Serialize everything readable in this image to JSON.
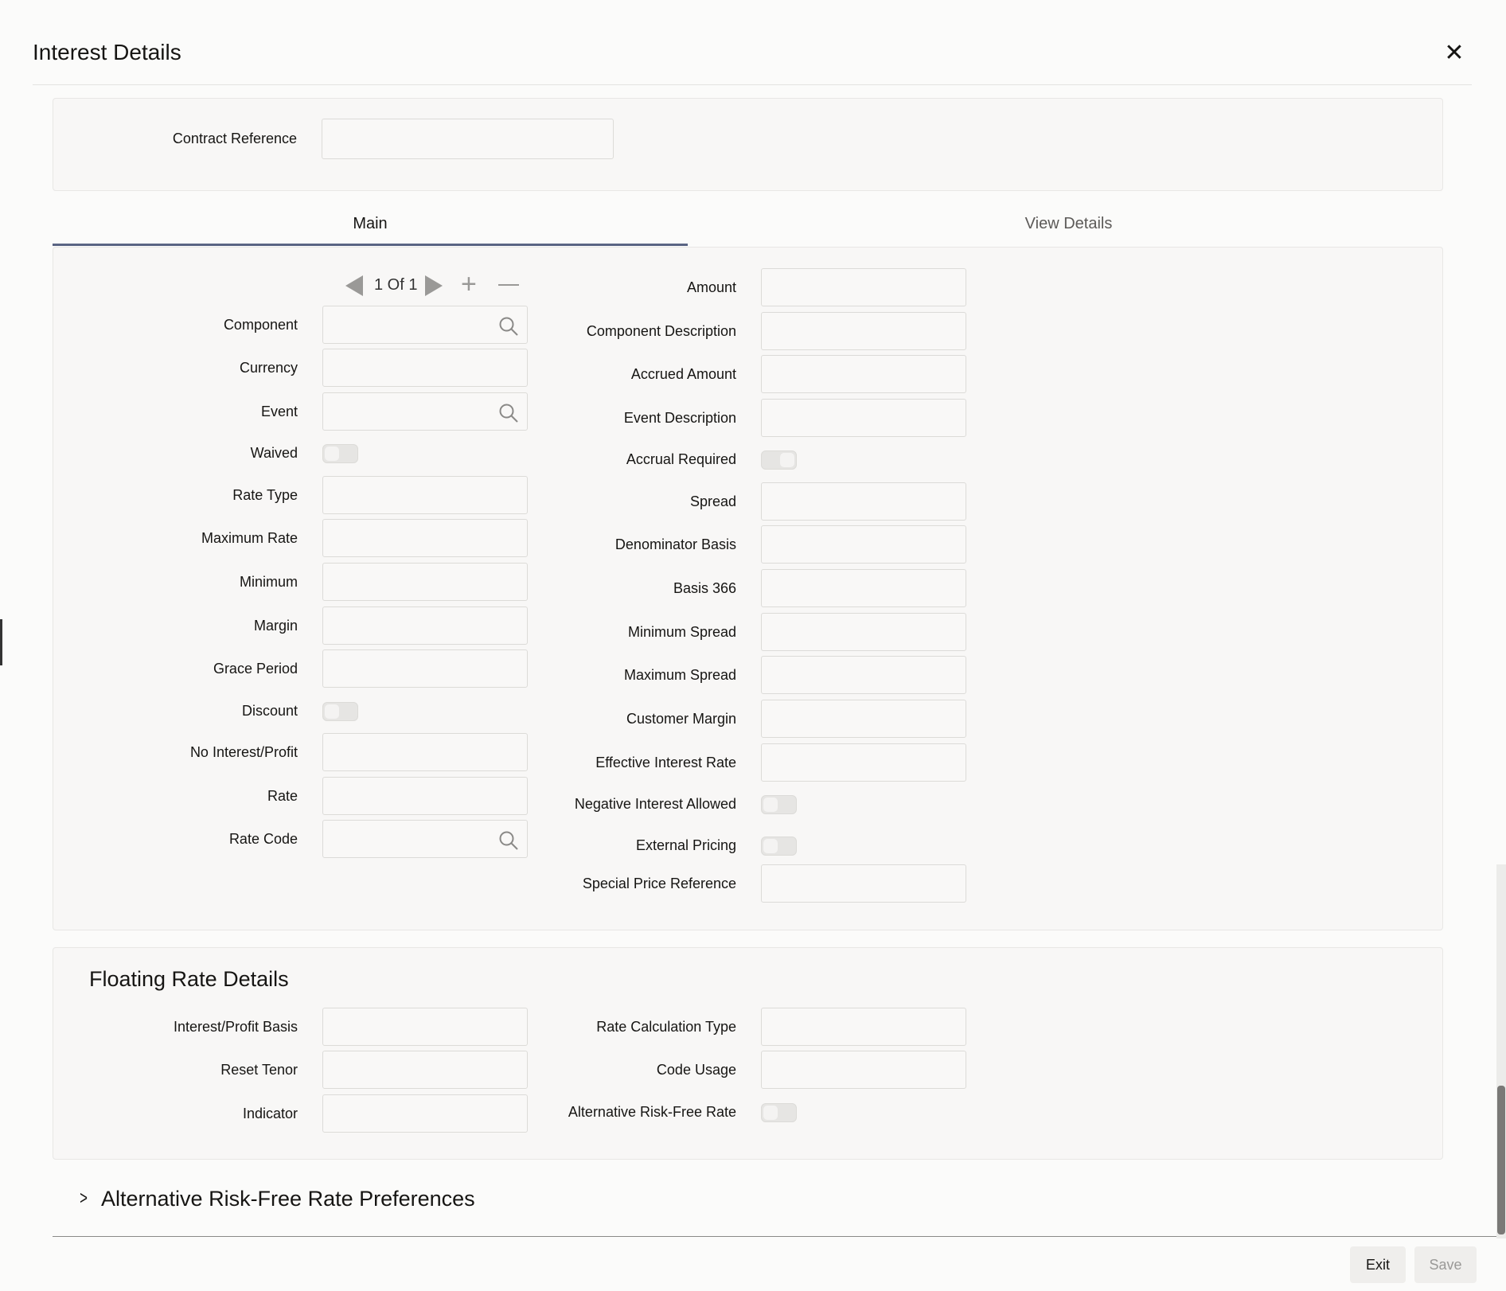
{
  "window": {
    "title": "Interest Details",
    "close_icon": "close-icon"
  },
  "contract": {
    "label": "Contract Reference",
    "value": ""
  },
  "tabs": [
    {
      "label": "Main",
      "active": true
    },
    {
      "label": "View Details",
      "active": false
    }
  ],
  "pager": {
    "text": "1 Of 1"
  },
  "main_left": [
    {
      "label": "Component",
      "type": "lov",
      "value": ""
    },
    {
      "label": "Currency",
      "type": "text",
      "value": ""
    },
    {
      "label": "Event",
      "type": "lov",
      "value": ""
    },
    {
      "label": "Waived",
      "type": "toggle",
      "on": false
    },
    {
      "label": "Rate Type",
      "type": "text",
      "value": ""
    },
    {
      "label": "Maximum Rate",
      "type": "text",
      "value": ""
    },
    {
      "label": "Minimum",
      "type": "text",
      "value": ""
    },
    {
      "label": "Margin",
      "type": "text",
      "value": ""
    },
    {
      "label": "Grace Period",
      "type": "text",
      "value": ""
    },
    {
      "label": "Discount",
      "type": "toggle",
      "on": false
    },
    {
      "label": "No Interest/Profit",
      "type": "text",
      "value": ""
    },
    {
      "label": "Rate",
      "type": "text",
      "value": ""
    },
    {
      "label": "Rate Code",
      "type": "lov",
      "value": ""
    }
  ],
  "main_right": [
    {
      "label": "Amount",
      "type": "text",
      "value": ""
    },
    {
      "label": "Component Description",
      "type": "text",
      "value": ""
    },
    {
      "label": "Accrued Amount",
      "type": "text",
      "value": ""
    },
    {
      "label": "Event Description",
      "type": "text",
      "value": ""
    },
    {
      "label": "Accrual Required",
      "type": "toggle",
      "on": true
    },
    {
      "label": "Spread",
      "type": "text",
      "value": ""
    },
    {
      "label": "Denominator Basis",
      "type": "text",
      "value": ""
    },
    {
      "label": "Basis 366",
      "type": "text",
      "value": ""
    },
    {
      "label": "Minimum Spread",
      "type": "text",
      "value": ""
    },
    {
      "label": "Maximum Spread",
      "type": "text",
      "value": ""
    },
    {
      "label": "Customer Margin",
      "type": "text",
      "value": ""
    },
    {
      "label": "Effective Interest Rate",
      "type": "text",
      "value": ""
    },
    {
      "label": "Negative Interest Allowed",
      "type": "toggle",
      "on": false
    },
    {
      "label": "External Pricing",
      "type": "toggle",
      "on": false
    },
    {
      "label": "Special Price Reference",
      "type": "text",
      "value": ""
    }
  ],
  "floating": {
    "title": "Floating Rate Details",
    "left": [
      {
        "label": "Interest/Profit Basis",
        "type": "text",
        "value": ""
      },
      {
        "label": "Reset Tenor",
        "type": "text",
        "value": ""
      },
      {
        "label": "Indicator",
        "type": "text",
        "value": ""
      }
    ],
    "right": [
      {
        "label": "Rate Calculation Type",
        "type": "text",
        "value": ""
      },
      {
        "label": "Code Usage",
        "type": "text",
        "value": ""
      },
      {
        "label": "Alternative Risk-Free Rate",
        "type": "toggle",
        "on": false
      }
    ]
  },
  "arfr": {
    "title": "Alternative Risk-Free Rate Preferences",
    "expanded": false
  },
  "footer": {
    "exit_label": "Exit",
    "save_label": "Save"
  }
}
